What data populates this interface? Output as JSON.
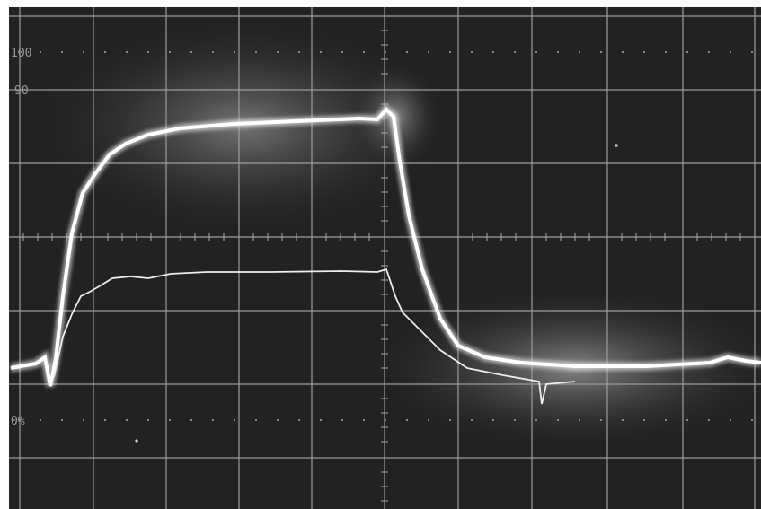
{
  "reticle": {
    "labels": [
      "100",
      "90",
      "0%"
    ]
  }
}
